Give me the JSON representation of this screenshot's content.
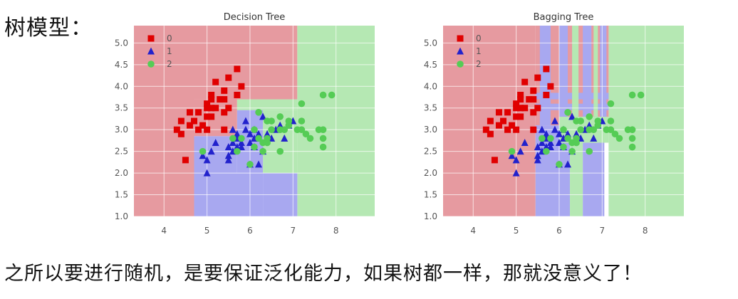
{
  "heading": "树模型：",
  "footer": "之所以要进行随机，是要保证泛化能力，如果树都一样，那就没意义了！",
  "colors": {
    "region_0": "#e69aa0",
    "region_1": "#a8a8f0",
    "region_2": "#b5e8b3",
    "class_0": "#e00000",
    "class_1": "#2222cc",
    "class_2": "#55cc55"
  },
  "chart_data": [
    {
      "type": "scatter",
      "title": "Decision Tree",
      "xlabel": "",
      "ylabel": "",
      "xlim": [
        3.3,
        8.9
      ],
      "ylim": [
        1.0,
        5.4
      ],
      "xticks": [
        "4",
        "5",
        "6",
        "7",
        "8"
      ],
      "yticks": [
        "1.0",
        "1.5",
        "2.0",
        "2.5",
        "3.0",
        "3.5",
        "4.0",
        "4.5",
        "5.0"
      ],
      "legend": [
        "0",
        "1",
        "2"
      ],
      "legend_position": "top-left",
      "grid": true,
      "regions": [
        {
          "class": 0,
          "x": [
            3.3,
            4.7
          ],
          "y": [
            1.0,
            5.4
          ]
        },
        {
          "class": 0,
          "x": [
            4.7,
            7.1
          ],
          "y": [
            3.7,
            5.4
          ]
        },
        {
          "class": 0,
          "x": [
            4.7,
            5.7
          ],
          "y": [
            2.85,
            3.7
          ]
        },
        {
          "class": 2,
          "x": [
            7.1,
            8.9
          ],
          "y": [
            1.0,
            5.4
          ]
        },
        {
          "class": 2,
          "x": [
            5.7,
            7.1
          ],
          "y": [
            3.45,
            3.7
          ]
        },
        {
          "class": 2,
          "x": [
            6.3,
            7.1
          ],
          "y": [
            2.0,
            3.45
          ]
        },
        {
          "class": 1,
          "x": [
            4.7,
            6.3
          ],
          "y": [
            1.0,
            2.0
          ]
        },
        {
          "class": 1,
          "x": [
            4.7,
            5.7
          ],
          "y": [
            2.0,
            2.85
          ]
        },
        {
          "class": 1,
          "x": [
            5.7,
            6.3
          ],
          "y": [
            2.0,
            3.45
          ]
        },
        {
          "class": 1,
          "x": [
            6.3,
            7.1
          ],
          "y": [
            1.0,
            2.0
          ]
        }
      ],
      "series": [
        {
          "name": "0",
          "marker": "square",
          "points": [
            [
              4.3,
              3.0
            ],
            [
              4.4,
              2.9
            ],
            [
              4.4,
              3.2
            ],
            [
              4.5,
              2.3
            ],
            [
              4.6,
              3.1
            ],
            [
              4.6,
              3.4
            ],
            [
              4.7,
              3.2
            ],
            [
              4.8,
              3.0
            ],
            [
              4.8,
              3.4
            ],
            [
              4.9,
              3.1
            ],
            [
              5.0,
              3.0
            ],
            [
              5.0,
              3.3
            ],
            [
              5.0,
              3.5
            ],
            [
              5.1,
              3.3
            ],
            [
              5.1,
              3.5
            ],
            [
              5.1,
              3.8
            ],
            [
              5.2,
              3.5
            ],
            [
              5.2,
              4.1
            ],
            [
              5.3,
              3.7
            ],
            [
              5.4,
              3.4
            ],
            [
              5.4,
              3.9
            ],
            [
              5.5,
              4.2
            ],
            [
              5.5,
              3.5
            ],
            [
              5.7,
              3.8
            ],
            [
              5.7,
              4.4
            ],
            [
              5.8,
              4.0
            ],
            [
              5.4,
              3.0
            ],
            [
              5.0,
              3.6
            ],
            [
              5.1,
              3.7
            ],
            [
              5.4,
              3.7
            ]
          ]
        },
        {
          "name": "1",
          "marker": "triangle",
          "points": [
            [
              4.9,
              2.4
            ],
            [
              5.0,
              2.0
            ],
            [
              5.0,
              2.3
            ],
            [
              5.1,
              2.5
            ],
            [
              5.2,
              2.7
            ],
            [
              5.5,
              2.3
            ],
            [
              5.5,
              2.4
            ],
            [
              5.5,
              2.6
            ],
            [
              5.6,
              2.5
            ],
            [
              5.6,
              2.7
            ],
            [
              5.6,
              3.0
            ],
            [
              5.7,
              2.6
            ],
            [
              5.7,
              2.8
            ],
            [
              5.7,
              2.9
            ],
            [
              5.8,
              2.7
            ],
            [
              5.9,
              3.0
            ],
            [
              5.9,
              3.2
            ],
            [
              6.0,
              2.2
            ],
            [
              6.0,
              2.7
            ],
            [
              6.0,
              2.9
            ],
            [
              6.1,
              2.8
            ],
            [
              6.1,
              3.0
            ],
            [
              6.2,
              2.2
            ],
            [
              6.2,
              2.9
            ],
            [
              6.3,
              2.5
            ],
            [
              6.4,
              2.9
            ],
            [
              6.5,
              2.8
            ],
            [
              6.6,
              3.0
            ],
            [
              6.7,
              3.1
            ],
            [
              6.8,
              2.8
            ],
            [
              6.9,
              3.1
            ],
            [
              7.0,
              3.2
            ],
            [
              6.3,
              3.3
            ],
            [
              6.1,
              2.6
            ],
            [
              5.8,
              2.6
            ]
          ]
        },
        {
          "name": "2",
          "marker": "circle",
          "points": [
            [
              4.9,
              2.5
            ],
            [
              5.6,
              2.8
            ],
            [
              5.7,
              2.5
            ],
            [
              5.8,
              2.8
            ],
            [
              6.0,
              2.2
            ],
            [
              6.1,
              3.0
            ],
            [
              6.2,
              2.8
            ],
            [
              6.3,
              2.5
            ],
            [
              6.3,
              2.7
            ],
            [
              6.4,
              2.8
            ],
            [
              6.4,
              3.2
            ],
            [
              6.5,
              3.0
            ],
            [
              6.5,
              3.2
            ],
            [
              6.7,
              2.5
            ],
            [
              6.7,
              3.0
            ],
            [
              6.7,
              3.3
            ],
            [
              6.8,
              3.0
            ],
            [
              6.9,
              3.1
            ],
            [
              7.1,
              3.0
            ],
            [
              7.2,
              3.0
            ],
            [
              7.2,
              3.2
            ],
            [
              7.2,
              3.6
            ],
            [
              7.3,
              2.9
            ],
            [
              7.4,
              2.8
            ],
            [
              7.6,
              3.0
            ],
            [
              7.7,
              2.6
            ],
            [
              7.7,
              3.0
            ],
            [
              7.7,
              3.8
            ],
            [
              7.9,
              3.8
            ],
            [
              7.7,
              2.8
            ],
            [
              6.1,
              2.6
            ],
            [
              6.2,
              3.4
            ],
            [
              6.9,
              3.2
            ],
            [
              6.4,
              2.7
            ]
          ]
        }
      ]
    },
    {
      "type": "scatter",
      "title": "Bagging Tree",
      "xlabel": "",
      "ylabel": "",
      "xlim": [
        3.3,
        8.9
      ],
      "ylim": [
        1.0,
        5.4
      ],
      "xticks": [
        "4",
        "5",
        "6",
        "7",
        "8"
      ],
      "yticks": [
        "1.0",
        "1.5",
        "2.0",
        "2.5",
        "3.0",
        "3.5",
        "4.0",
        "4.5",
        "5.0"
      ],
      "legend": [
        "0",
        "1",
        "2"
      ],
      "legend_position": "top-left",
      "grid": true,
      "regions": [
        {
          "class": 0,
          "x": [
            3.3,
            5.45
          ],
          "y": [
            1.0,
            5.4
          ]
        },
        {
          "class": 2,
          "x": [
            7.15,
            8.9
          ],
          "y": [
            1.0,
            5.4
          ]
        },
        {
          "class": 0,
          "x": [
            5.45,
            7.15
          ],
          "y": [
            3.1,
            5.4
          ]
        },
        {
          "class": 1,
          "x": [
            5.45,
            6.25
          ],
          "y": [
            1.0,
            3.1
          ]
        },
        {
          "class": 2,
          "x": [
            6.25,
            6.55
          ],
          "y": [
            1.0,
            3.1
          ]
        },
        {
          "class": 1,
          "x": [
            6.55,
            7.05
          ],
          "y": [
            1.0,
            3.1
          ]
        },
        {
          "class": 2,
          "x": [
            6.0,
            7.15
          ],
          "y": [
            2.7,
            3.3
          ]
        },
        {
          "class": 1,
          "x": [
            5.55,
            5.8
          ],
          "y": [
            3.1,
            5.4
          ]
        },
        {
          "class": 1,
          "x": [
            6.0,
            6.2
          ],
          "y": [
            3.3,
            5.4
          ]
        },
        {
          "class": 1,
          "x": [
            6.55,
            6.75
          ],
          "y": [
            3.3,
            5.4
          ]
        },
        {
          "class": 1,
          "x": [
            6.95,
            7.1
          ],
          "y": [
            3.3,
            5.4
          ]
        },
        {
          "class": 1,
          "x": [
            5.45,
            7.15
          ],
          "y": [
            3.7,
            3.85
          ]
        },
        {
          "class": 1,
          "x": [
            5.45,
            7.15
          ],
          "y": [
            3.45,
            3.6
          ]
        },
        {
          "class": 2,
          "x": [
            6.3,
            6.45
          ],
          "y": [
            3.3,
            5.4
          ]
        },
        {
          "class": 2,
          "x": [
            6.8,
            6.9
          ],
          "y": [
            3.3,
            5.4
          ]
        }
      ],
      "series": [
        {
          "name": "0",
          "marker": "square",
          "points": [
            [
              4.3,
              3.0
            ],
            [
              4.4,
              2.9
            ],
            [
              4.4,
              3.2
            ],
            [
              4.5,
              2.3
            ],
            [
              4.6,
              3.1
            ],
            [
              4.6,
              3.4
            ],
            [
              4.7,
              3.2
            ],
            [
              4.8,
              3.0
            ],
            [
              4.8,
              3.4
            ],
            [
              4.9,
              3.1
            ],
            [
              5.0,
              3.0
            ],
            [
              5.0,
              3.3
            ],
            [
              5.0,
              3.5
            ],
            [
              5.1,
              3.3
            ],
            [
              5.1,
              3.5
            ],
            [
              5.1,
              3.8
            ],
            [
              5.2,
              3.5
            ],
            [
              5.2,
              4.1
            ],
            [
              5.3,
              3.7
            ],
            [
              5.4,
              3.4
            ],
            [
              5.4,
              3.9
            ],
            [
              5.5,
              4.2
            ],
            [
              5.5,
              3.5
            ],
            [
              5.7,
              3.8
            ],
            [
              5.7,
              4.4
            ],
            [
              5.8,
              4.0
            ],
            [
              5.4,
              3.0
            ],
            [
              5.0,
              3.6
            ],
            [
              5.1,
              3.7
            ],
            [
              5.4,
              3.7
            ]
          ]
        },
        {
          "name": "1",
          "marker": "triangle",
          "points": [
            [
              4.9,
              2.4
            ],
            [
              5.0,
              2.0
            ],
            [
              5.0,
              2.3
            ],
            [
              5.1,
              2.5
            ],
            [
              5.2,
              2.7
            ],
            [
              5.5,
              2.3
            ],
            [
              5.5,
              2.4
            ],
            [
              5.5,
              2.6
            ],
            [
              5.6,
              2.5
            ],
            [
              5.6,
              2.7
            ],
            [
              5.6,
              3.0
            ],
            [
              5.7,
              2.6
            ],
            [
              5.7,
              2.8
            ],
            [
              5.7,
              2.9
            ],
            [
              5.8,
              2.7
            ],
            [
              5.9,
              3.0
            ],
            [
              5.9,
              3.2
            ],
            [
              6.0,
              2.2
            ],
            [
              6.0,
              2.7
            ],
            [
              6.0,
              2.9
            ],
            [
              6.1,
              2.8
            ],
            [
              6.1,
              3.0
            ],
            [
              6.2,
              2.2
            ],
            [
              6.2,
              2.9
            ],
            [
              6.3,
              2.5
            ],
            [
              6.4,
              2.9
            ],
            [
              6.5,
              2.8
            ],
            [
              6.6,
              3.0
            ],
            [
              6.7,
              3.1
            ],
            [
              6.8,
              2.8
            ],
            [
              6.9,
              3.1
            ],
            [
              7.0,
              3.2
            ],
            [
              6.3,
              3.3
            ],
            [
              6.1,
              2.6
            ],
            [
              5.8,
              2.6
            ]
          ]
        },
        {
          "name": "2",
          "marker": "circle",
          "points": [
            [
              4.9,
              2.5
            ],
            [
              5.6,
              2.8
            ],
            [
              5.7,
              2.5
            ],
            [
              5.8,
              2.8
            ],
            [
              6.0,
              2.2
            ],
            [
              6.1,
              3.0
            ],
            [
              6.2,
              2.8
            ],
            [
              6.3,
              2.5
            ],
            [
              6.3,
              2.7
            ],
            [
              6.4,
              2.8
            ],
            [
              6.4,
              3.2
            ],
            [
              6.5,
              3.0
            ],
            [
              6.5,
              3.2
            ],
            [
              6.7,
              2.5
            ],
            [
              6.7,
              3.0
            ],
            [
              6.7,
              3.3
            ],
            [
              6.8,
              3.0
            ],
            [
              6.9,
              3.1
            ],
            [
              7.1,
              3.0
            ],
            [
              7.2,
              3.0
            ],
            [
              7.2,
              3.2
            ],
            [
              7.2,
              3.6
            ],
            [
              7.3,
              2.9
            ],
            [
              7.4,
              2.8
            ],
            [
              7.6,
              3.0
            ],
            [
              7.7,
              2.6
            ],
            [
              7.7,
              3.0
            ],
            [
              7.7,
              3.8
            ],
            [
              7.9,
              3.8
            ],
            [
              7.7,
              2.8
            ],
            [
              6.1,
              2.6
            ],
            [
              6.2,
              3.4
            ],
            [
              6.9,
              3.2
            ],
            [
              6.4,
              2.7
            ]
          ]
        }
      ]
    }
  ]
}
